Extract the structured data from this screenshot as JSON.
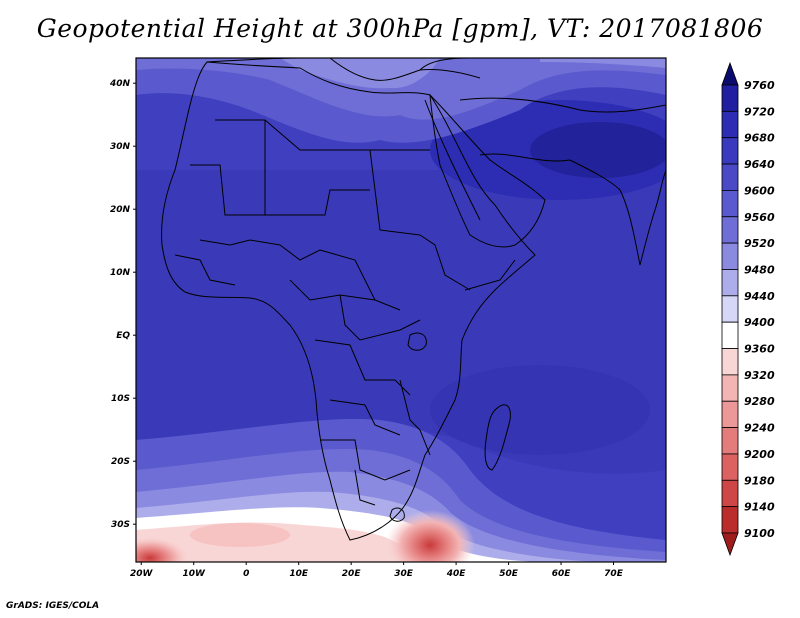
{
  "title": "Geopotential Height at 300hPa [gpm], VT: 2017081806",
  "footer": "GrADS: IGES/COLA",
  "map": {
    "lat_labels": [
      "40N",
      "30N",
      "20N",
      "10N",
      "EQ",
      "10S",
      "20S",
      "30S"
    ],
    "lon_labels": [
      "20W",
      "10W",
      "0",
      "10E",
      "20E",
      "30E",
      "40E",
      "50E",
      "60E",
      "70E"
    ],
    "lat_range": [
      -36,
      44
    ],
    "lon_range": [
      -21,
      80
    ]
  },
  "colorbar": {
    "labels": [
      "9760",
      "9720",
      "9680",
      "9640",
      "9600",
      "9560",
      "9520",
      "9480",
      "9440",
      "9400",
      "9360",
      "9320",
      "9280",
      "9240",
      "9200",
      "9180",
      "9140",
      "9100"
    ],
    "colors": [
      "#0b0b6e",
      "#1f1fa0",
      "#2d2db4",
      "#3a3abe",
      "#4a4ac6",
      "#5a5ace",
      "#6e6ed6",
      "#8a8ae0",
      "#adadeb",
      "#d6d6f6",
      "#ffffff",
      "#f9d6d6",
      "#f3b4b4",
      "#ec9898",
      "#e47c7c",
      "#dc6262",
      "#cf4646",
      "#bb2c2c",
      "#9e1c1c"
    ]
  },
  "colors": {
    "ocean_base": "#3f3fc0",
    "coast": "#000000"
  }
}
